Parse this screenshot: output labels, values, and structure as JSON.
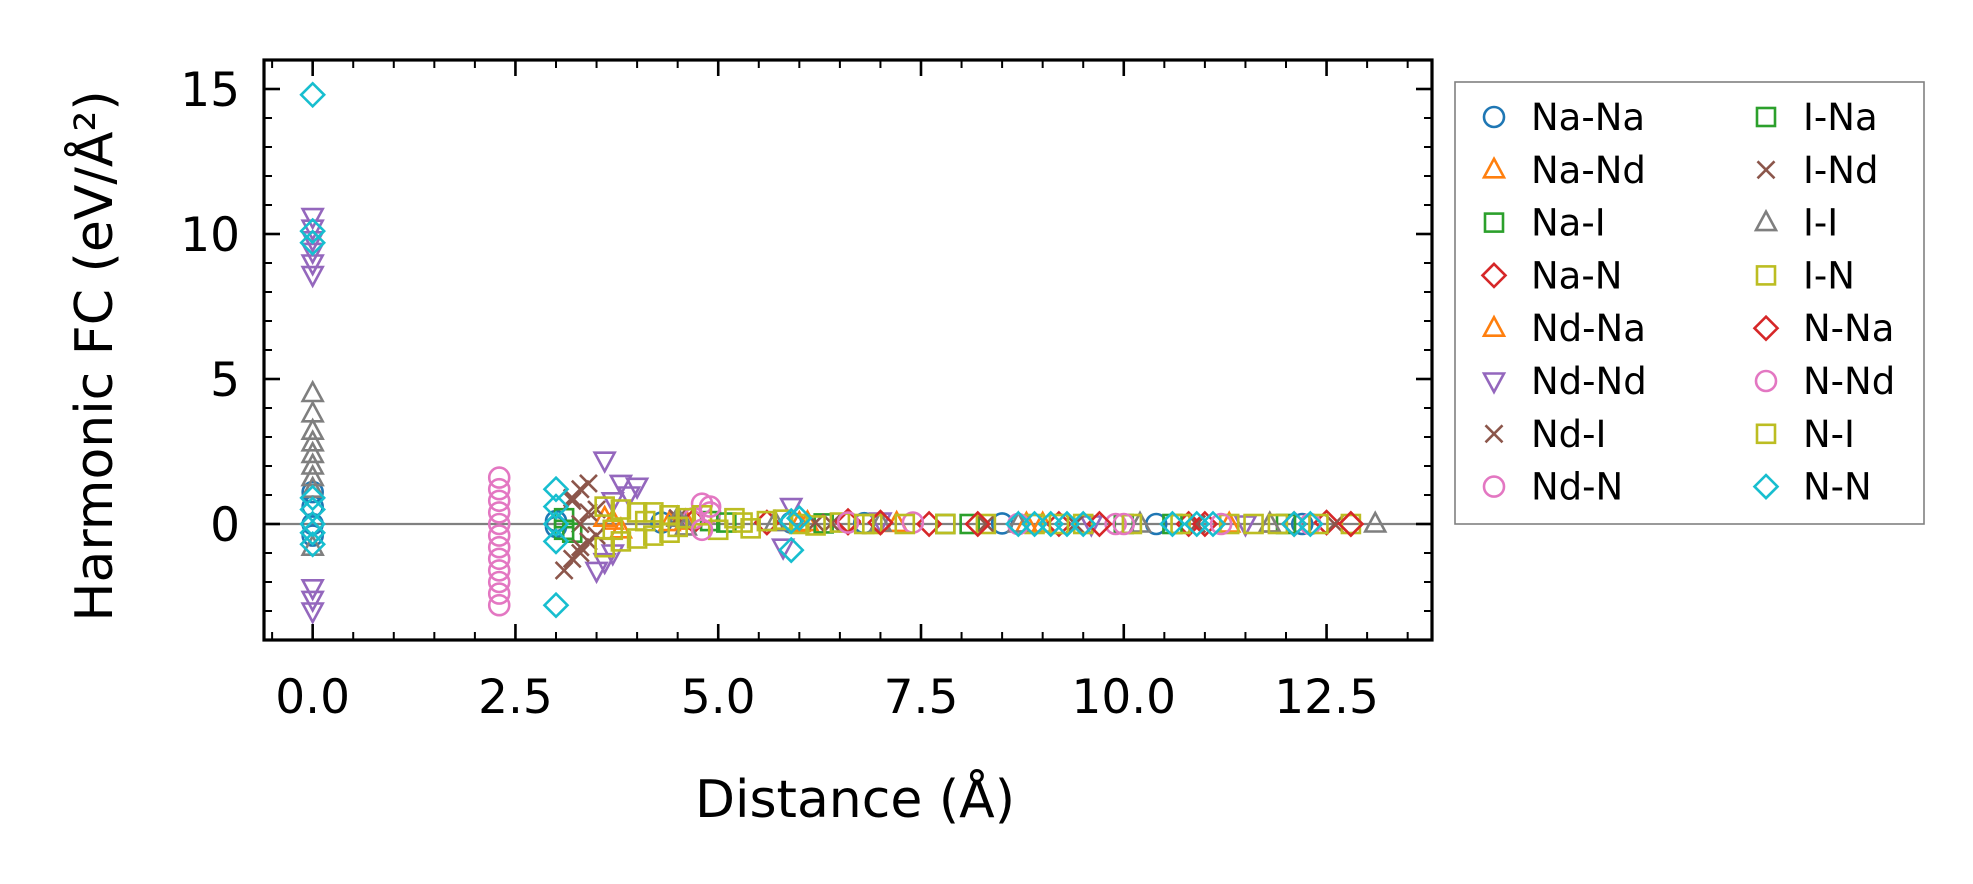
{
  "chart_data": {
    "type": "scatter",
    "title": "",
    "xlabel": "Distance (Å)",
    "ylabel": "Harmonic FC (eV/Å²)",
    "xlim": [
      -0.6,
      13.8
    ],
    "ylim": [
      -4.0,
      16.0
    ],
    "xticks": [
      0.0,
      2.5,
      5.0,
      7.5,
      10.0,
      12.5
    ],
    "xtick_labels": [
      "0.0",
      "2.5",
      "5.0",
      "7.5",
      "10.0",
      "12.5"
    ],
    "yticks": [
      0,
      5,
      10,
      15
    ],
    "ytick_labels": [
      "0",
      "5",
      "10",
      "15"
    ],
    "zero_line": 0,
    "grid": false,
    "legend_position": "outside-right",
    "legend_columns": 2,
    "series": [
      {
        "name": "Na-Na",
        "marker": "circle",
        "color": "#1f77b4",
        "points": [
          [
            0,
            1.1
          ],
          [
            0,
            0.6
          ],
          [
            0,
            0.0
          ],
          [
            0,
            -0.4
          ],
          [
            3.0,
            0.1
          ],
          [
            3.0,
            -0.1
          ],
          [
            4.3,
            0.05
          ],
          [
            5.9,
            0.05
          ],
          [
            6.8,
            0.03
          ],
          [
            8.5,
            0.02
          ],
          [
            10.4,
            0.0
          ],
          [
            12.2,
            0.0
          ]
        ]
      },
      {
        "name": "Na-Nd",
        "marker": "triangle-up",
        "color": "#ff7f0e",
        "points": [
          [
            3.6,
            0.2
          ],
          [
            3.8,
            -0.2
          ],
          [
            4.6,
            0.1
          ],
          [
            6.1,
            0.05
          ],
          [
            7.2,
            0.02
          ],
          [
            9.0,
            0.0
          ],
          [
            11.3,
            0.0
          ]
        ]
      },
      {
        "name": "Na-I",
        "marker": "square",
        "color": "#2ca02c",
        "points": [
          [
            3.1,
            0.2
          ],
          [
            3.2,
            -0.3
          ],
          [
            4.9,
            0.1
          ],
          [
            6.3,
            0.02
          ],
          [
            8.1,
            0.0
          ],
          [
            10.0,
            0.0
          ],
          [
            12.0,
            0.0
          ]
        ]
      },
      {
        "name": "Na-N",
        "marker": "diamond",
        "color": "#d62728",
        "points": [
          [
            4.7,
            0.1
          ],
          [
            5.6,
            0.05
          ],
          [
            6.6,
            0.05
          ],
          [
            7.6,
            0.0
          ],
          [
            9.2,
            0.0
          ],
          [
            10.8,
            0.0
          ],
          [
            12.5,
            0.05
          ],
          [
            12.8,
            0.0
          ]
        ]
      },
      {
        "name": "Nd-Na",
        "marker": "triangle-up",
        "color": "#ff7f0e",
        "points": [
          [
            3.7,
            0.1
          ],
          [
            4.4,
            0.05
          ],
          [
            6.0,
            0.02
          ],
          [
            8.8,
            0.0
          ],
          [
            11.8,
            0.0
          ]
        ]
      },
      {
        "name": "Nd-Nd",
        "marker": "triangle-down",
        "color": "#9467bd",
        "points": [
          [
            0,
            10.6
          ],
          [
            0,
            10.2
          ],
          [
            0,
            9.8
          ],
          [
            0,
            9.4
          ],
          [
            0,
            9.0
          ],
          [
            0,
            8.6
          ],
          [
            0,
            -2.2
          ],
          [
            0,
            -2.6
          ],
          [
            0,
            -3.0
          ],
          [
            3.5,
            -1.6
          ],
          [
            3.6,
            -1.3
          ],
          [
            3.7,
            -1.0
          ],
          [
            3.6,
            2.2
          ],
          [
            3.8,
            1.4
          ],
          [
            4.0,
            1.3
          ],
          [
            3.9,
            1.0
          ],
          [
            3.7,
            0.8
          ],
          [
            5.8,
            -0.8
          ],
          [
            5.9,
            0.6
          ],
          [
            7.0,
            0.1
          ],
          [
            9.6,
            0.0
          ],
          [
            11.5,
            0.0
          ]
        ]
      },
      {
        "name": "Nd-I",
        "marker": "x",
        "color": "#8c564b",
        "points": [
          [
            3.1,
            -1.6
          ],
          [
            3.2,
            -1.2
          ],
          [
            3.3,
            -0.8
          ],
          [
            3.2,
            0.8
          ],
          [
            3.3,
            1.2
          ],
          [
            3.4,
            1.4
          ],
          [
            3.4,
            0.4
          ],
          [
            3.5,
            -0.4
          ],
          [
            3.3,
            0.0
          ],
          [
            4.5,
            0.2
          ],
          [
            6.2,
            0.05
          ],
          [
            8.3,
            0.0
          ],
          [
            10.9,
            0.0
          ],
          [
            12.6,
            0.0
          ]
        ]
      },
      {
        "name": "Nd-N",
        "marker": "circle",
        "color": "#e377c2",
        "points": [
          [
            2.3,
            1.6
          ],
          [
            2.3,
            1.2
          ],
          [
            2.3,
            0.8
          ],
          [
            2.3,
            0.4
          ],
          [
            2.3,
            0.0
          ],
          [
            2.3,
            -0.4
          ],
          [
            2.3,
            -0.8
          ],
          [
            2.3,
            -1.2
          ],
          [
            2.3,
            -1.6
          ],
          [
            2.3,
            -2.0
          ],
          [
            2.3,
            -2.4
          ],
          [
            2.3,
            -2.8
          ],
          [
            4.8,
            0.7
          ],
          [
            4.9,
            0.4
          ],
          [
            4.7,
            0.2
          ],
          [
            7.4,
            0.05
          ],
          [
            9.9,
            0.0
          ],
          [
            12.3,
            0.0
          ]
        ]
      },
      {
        "name": "I-Na",
        "marker": "square",
        "color": "#2ca02c",
        "points": [
          [
            3.1,
            -0.2
          ],
          [
            5.1,
            0.05
          ],
          [
            7.8,
            0.0
          ],
          [
            10.6,
            0.0
          ]
        ]
      },
      {
        "name": "I-Nd",
        "marker": "x",
        "color": "#8c564b",
        "points": [
          [
            3.2,
            0.9
          ],
          [
            3.3,
            -1.0
          ],
          [
            3.4,
            -0.6
          ],
          [
            3.5,
            0.5
          ],
          [
            6.4,
            0.02
          ],
          [
            9.4,
            0.0
          ]
        ]
      },
      {
        "name": "I-I",
        "marker": "triangle-up",
        "color": "#7f7f7f",
        "points": [
          [
            0,
            4.5
          ],
          [
            0,
            3.8
          ],
          [
            0,
            3.2
          ],
          [
            0,
            2.8
          ],
          [
            0,
            2.4
          ],
          [
            0,
            2.0
          ],
          [
            0,
            1.6
          ],
          [
            0,
            1.2
          ],
          [
            0,
            -0.8
          ],
          [
            4.5,
            0.2
          ],
          [
            4.6,
            -0.1
          ],
          [
            5.7,
            0.05
          ],
          [
            7.0,
            0.03
          ],
          [
            8.7,
            0.0
          ],
          [
            10.2,
            0.0
          ],
          [
            11.8,
            0.0
          ],
          [
            13.1,
            0.0
          ]
        ]
      },
      {
        "name": "I-N",
        "marker": "square",
        "color": "#bcbd22",
        "points": [
          [
            3.6,
            0.6
          ],
          [
            3.6,
            -0.8
          ],
          [
            3.8,
            0.5
          ],
          [
            3.8,
            -0.6
          ],
          [
            4.0,
            0.4
          ],
          [
            4.0,
            -0.5
          ],
          [
            4.2,
            0.4
          ],
          [
            4.2,
            -0.4
          ],
          [
            4.4,
            0.3
          ],
          [
            4.4,
            -0.3
          ],
          [
            4.6,
            0.2
          ],
          [
            4.8,
            0.3
          ],
          [
            5.0,
            -0.2
          ],
          [
            5.2,
            0.2
          ],
          [
            5.4,
            -0.15
          ],
          [
            5.6,
            0.1
          ],
          [
            5.8,
            0.15
          ],
          [
            6.0,
            0.0
          ],
          [
            6.2,
            -0.05
          ],
          [
            6.5,
            0.05
          ],
          [
            6.9,
            0.0
          ],
          [
            7.3,
            0.0
          ],
          [
            7.8,
            0.0
          ],
          [
            8.3,
            0.0
          ],
          [
            8.9,
            0.0
          ],
          [
            9.5,
            0.0
          ],
          [
            10.1,
            0.0
          ],
          [
            10.7,
            0.0
          ],
          [
            11.3,
            0.0
          ],
          [
            11.9,
            0.0
          ],
          [
            12.4,
            0.0
          ],
          [
            12.8,
            0.0
          ]
        ]
      },
      {
        "name": "N-Na",
        "marker": "diamond",
        "color": "#d62728",
        "points": [
          [
            6.6,
            0.1
          ],
          [
            7.0,
            0.05
          ],
          [
            8.2,
            0.0
          ],
          [
            9.7,
            0.0
          ],
          [
            11.0,
            0.0
          ],
          [
            12.1,
            0.0
          ],
          [
            12.8,
            0.0
          ]
        ]
      },
      {
        "name": "N-Nd",
        "marker": "circle",
        "color": "#e377c2",
        "points": [
          [
            4.9,
            0.6
          ],
          [
            4.8,
            -0.2
          ],
          [
            6.6,
            0.05
          ],
          [
            8.7,
            0.0
          ],
          [
            10.0,
            0.0
          ],
          [
            11.2,
            0.0
          ]
        ]
      },
      {
        "name": "N-I",
        "marker": "square",
        "color": "#bcbd22",
        "points": [
          [
            3.7,
            -0.2
          ],
          [
            4.1,
            0.1
          ],
          [
            4.5,
            -0.1
          ],
          [
            5.3,
            0.05
          ],
          [
            6.8,
            0.0
          ],
          [
            9.2,
            0.0
          ],
          [
            11.6,
            0.0
          ]
        ]
      },
      {
        "name": "N-N",
        "marker": "diamond",
        "color": "#17becf",
        "points": [
          [
            0,
            14.8
          ],
          [
            0,
            10.1
          ],
          [
            0,
            9.7
          ],
          [
            0,
            0.9
          ],
          [
            0,
            0.5
          ],
          [
            0,
            0.0
          ],
          [
            0,
            -0.3
          ],
          [
            0,
            -0.7
          ],
          [
            3.0,
            1.2
          ],
          [
            3.0,
            0.6
          ],
          [
            3.0,
            0.0
          ],
          [
            3.0,
            -0.6
          ],
          [
            3.0,
            -2.8
          ],
          [
            5.9,
            0.1
          ],
          [
            5.9,
            -0.9
          ],
          [
            6.0,
            0.2
          ],
          [
            8.7,
            0.0
          ],
          [
            8.9,
            0.0
          ],
          [
            9.1,
            0.0
          ],
          [
            9.3,
            0.0
          ],
          [
            9.5,
            0.0
          ],
          [
            10.6,
            0.0
          ],
          [
            10.9,
            0.0
          ],
          [
            11.1,
            0.0
          ],
          [
            12.1,
            0.0
          ],
          [
            12.3,
            0.0
          ]
        ]
      }
    ]
  }
}
